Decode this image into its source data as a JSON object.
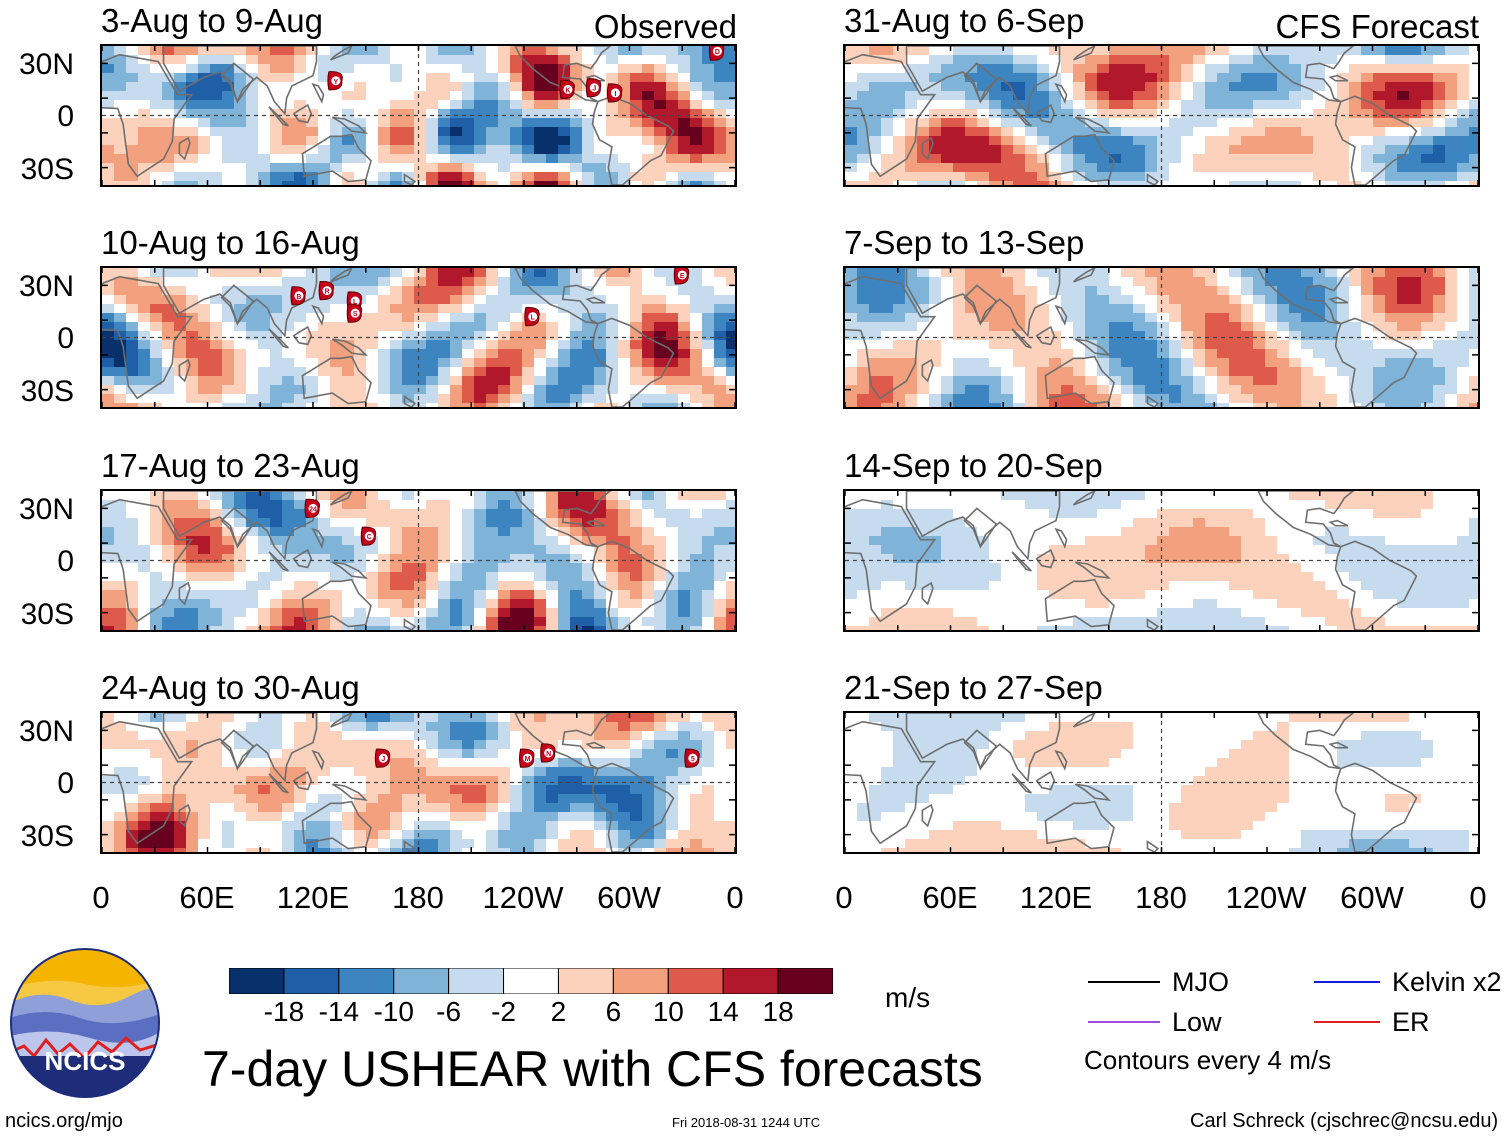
{
  "chart_data": {
    "type": "heatmap",
    "title": "7-day USHEAR with CFS forecasts",
    "units": "m/s",
    "column_labels": [
      "Observed",
      "CFS Forecast"
    ],
    "y_ticks": [
      "30N",
      "0",
      "30S"
    ],
    "x_ticks": [
      "0",
      "60E",
      "120E",
      "180",
      "120W",
      "60W",
      "0"
    ],
    "colorbar": {
      "labels": [
        "-18",
        "-14",
        "-10",
        "-6",
        "-2",
        "2",
        "6",
        "10",
        "14",
        "18"
      ],
      "colors": [
        "#08306b",
        "#1f5fa8",
        "#3d85c0",
        "#7fb3d8",
        "#c6dcee",
        "#ffffff",
        "#fcd2bc",
        "#f2a07e",
        "#de5a4a",
        "#b2182b",
        "#67001f"
      ]
    },
    "panels": [
      {
        "id": "obs1",
        "period": "3-Aug to 9-Aug",
        "source": "Observed",
        "storm_labels": [
          "Y",
          "K",
          "J",
          "I",
          "D"
        ]
      },
      {
        "id": "obs2",
        "period": "10-Aug to 16-Aug",
        "source": "Observed",
        "storm_labels": [
          "B",
          "R",
          "L",
          "S",
          "L",
          "E"
        ]
      },
      {
        "id": "obs3",
        "period": "17-Aug to 23-Aug",
        "source": "Observed",
        "storm_labels": [
          "24",
          "C"
        ]
      },
      {
        "id": "obs4",
        "period": "24-Aug to 30-Aug",
        "source": "Observed",
        "storm_labels": [
          "J",
          "M",
          "N",
          "5"
        ]
      },
      {
        "id": "fc1",
        "period": "31-Aug to 6-Sep",
        "source": "CFS Forecast"
      },
      {
        "id": "fc2",
        "period": "7-Sep to 13-Sep",
        "source": "CFS Forecast"
      },
      {
        "id": "fc3",
        "period": "14-Sep to 20-Sep",
        "source": "CFS Forecast"
      },
      {
        "id": "fc4",
        "period": "21-Sep to 27-Sep",
        "source": "CFS Forecast"
      }
    ],
    "legend": [
      {
        "label": "MJO",
        "color": "#000000"
      },
      {
        "label": "Kelvin x2",
        "color": "#1a1adb"
      },
      {
        "label": "Low",
        "color": "#a04be0"
      },
      {
        "label": "ER",
        "color": "#e02020"
      }
    ],
    "contour_note": "Contours every 4 m/s"
  },
  "footer": {
    "logo_text": "NCICS",
    "website": "ncics.org/mjo",
    "timestamp": "Fri 2018-08-31 1244 UTC",
    "credit": "Carl Schreck (cjschrec@ncsu.edu)"
  }
}
